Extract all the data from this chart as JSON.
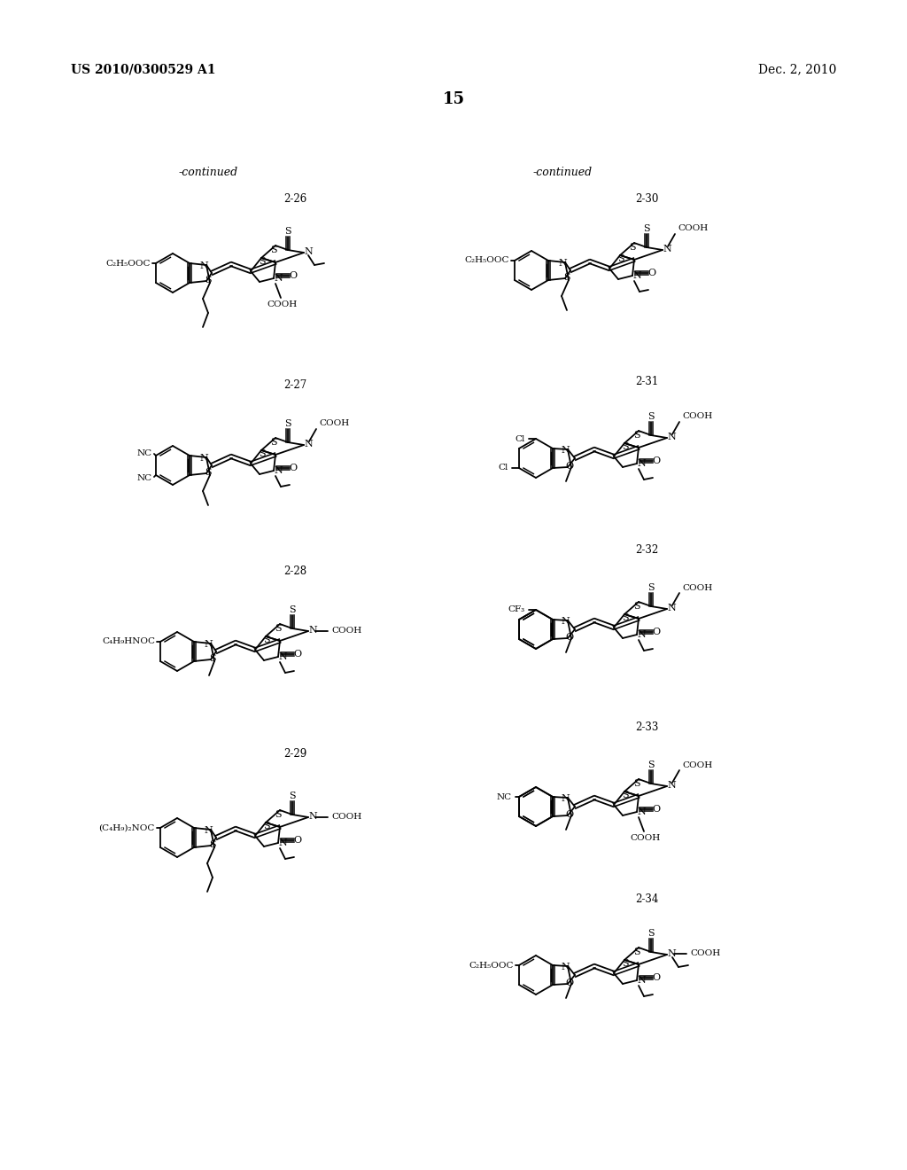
{
  "header_left": "US 2010/0300529 A1",
  "header_right": "Dec. 2, 2010",
  "page_num": "15",
  "continued": "-continued",
  "bg": "#ffffff",
  "compounds_left": [
    "2-26",
    "2-27",
    "2-28",
    "2-29"
  ],
  "compounds_right": [
    "2-30",
    "2-31",
    "2-32",
    "2-33",
    "2-34"
  ],
  "sub_left": [
    "C₂H₅OOC",
    "NC / NC",
    "C₄H₉HNOC",
    "(C₄H₉)₂NOC"
  ],
  "sub_right": [
    "C₂H₅OOC",
    "Cl / Cl",
    "CF₃",
    "NC",
    "C₂H₅OOC"
  ]
}
